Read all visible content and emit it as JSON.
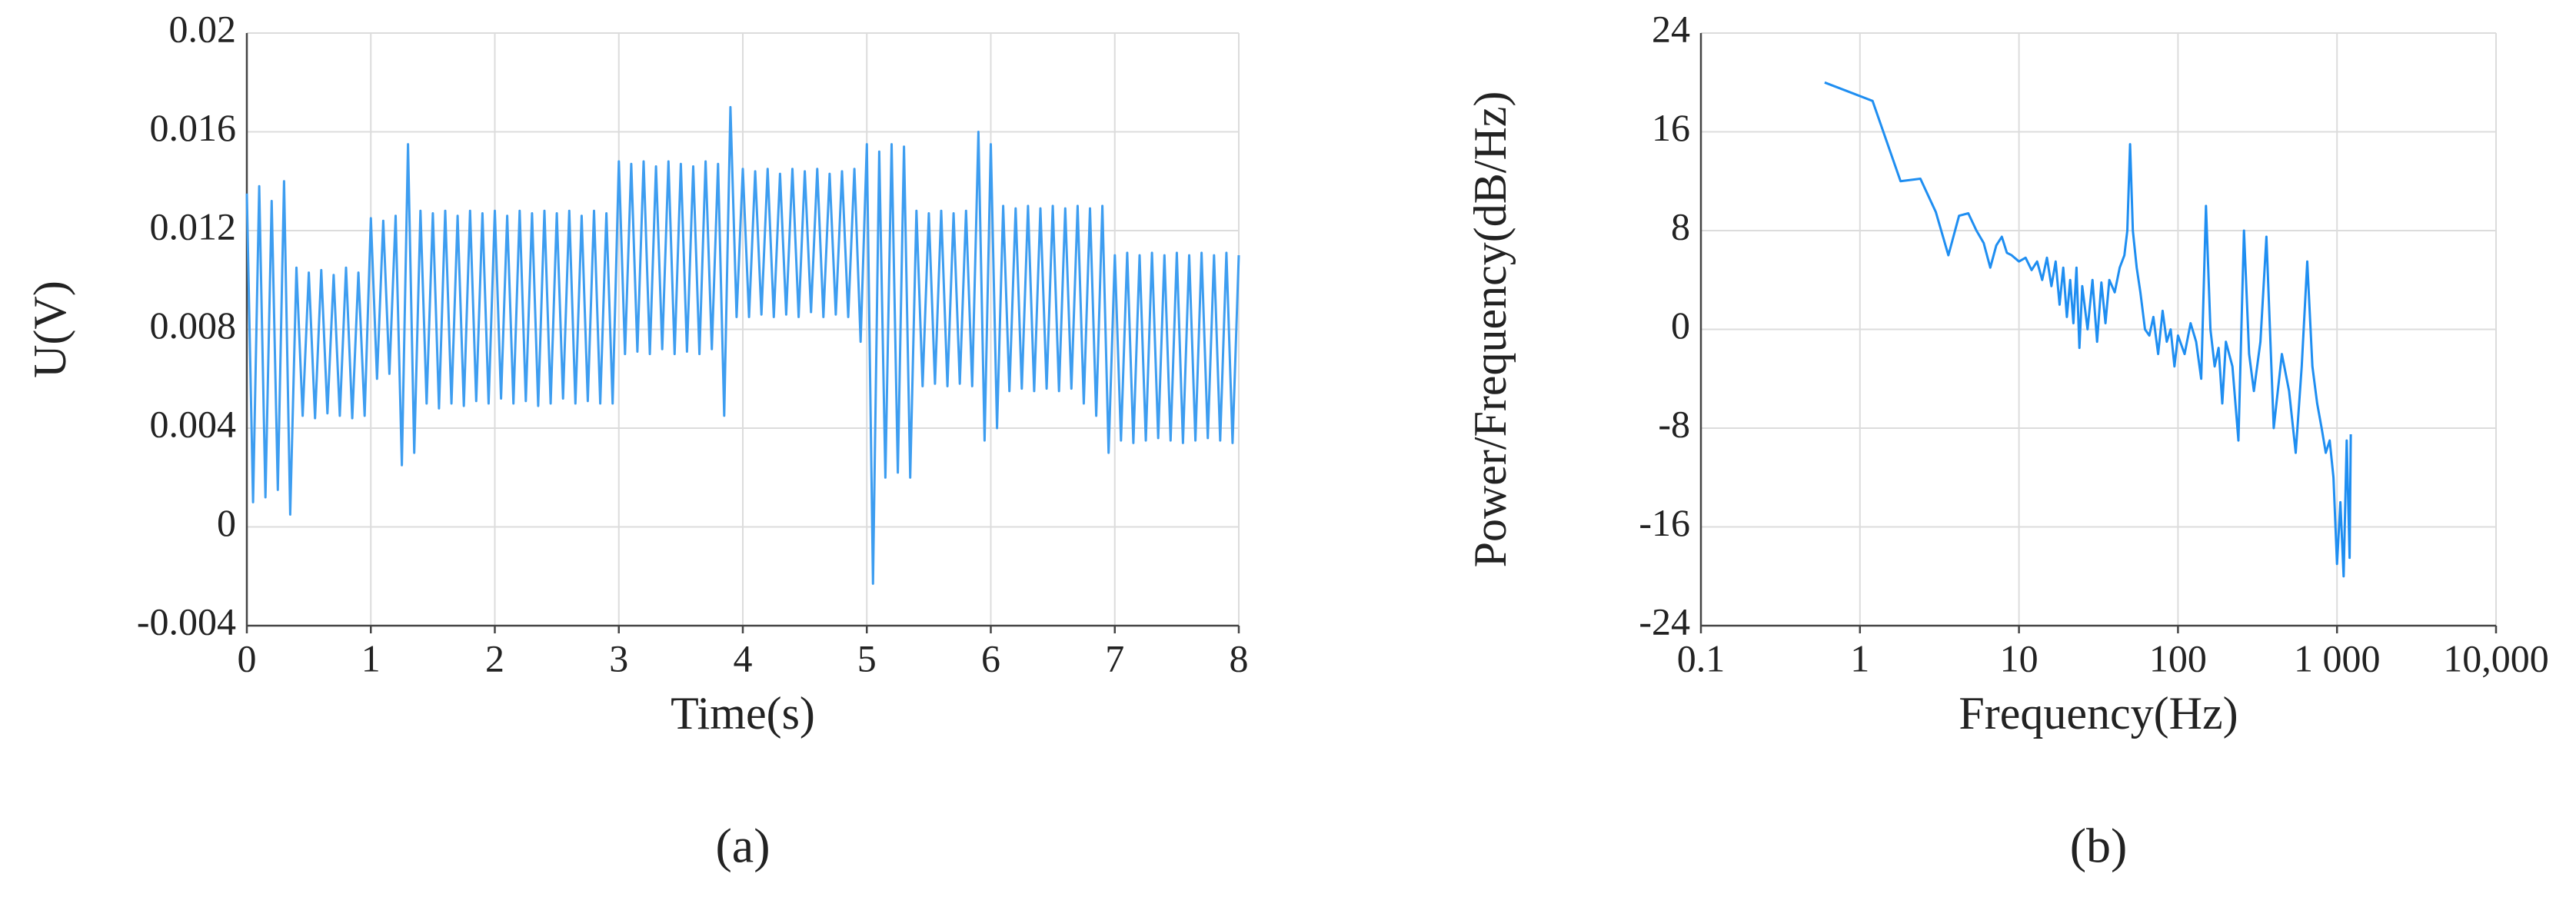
{
  "chart_data": [
    {
      "type": "line",
      "xlabel": "Time(s)",
      "ylabel": "U(V)",
      "caption": "(a)",
      "xlim": [
        0,
        8
      ],
      "xticks": [
        0,
        1,
        2,
        3,
        4,
        5,
        6,
        7,
        8
      ],
      "ylim": [
        -0.004,
        0.02
      ],
      "yticks": [
        -0.004,
        0,
        0.004,
        0.008,
        0.012,
        0.016,
        0.02
      ],
      "grid": true,
      "color": "#3d9df0",
      "x": [
        0,
        0.05,
        0.1,
        0.15,
        0.2,
        0.25,
        0.3,
        0.35,
        0.4,
        0.45,
        0.5,
        0.55,
        0.6,
        0.65,
        0.7,
        0.75,
        0.8,
        0.85,
        0.9,
        0.95,
        1,
        1.05,
        1.1,
        1.15,
        1.2,
        1.25,
        1.3,
        1.35,
        1.4,
        1.45,
        1.5,
        1.55,
        1.6,
        1.65,
        1.7,
        1.75,
        1.8,
        1.85,
        1.9,
        1.95,
        2,
        2.05,
        2.1,
        2.15,
        2.2,
        2.25,
        2.3,
        2.35,
        2.4,
        2.45,
        2.5,
        2.55,
        2.6,
        2.65,
        2.7,
        2.75,
        2.8,
        2.85,
        2.9,
        2.95,
        3,
        3.05,
        3.1,
        3.15,
        3.2,
        3.25,
        3.3,
        3.35,
        3.4,
        3.45,
        3.5,
        3.55,
        3.6,
        3.65,
        3.7,
        3.75,
        3.8,
        3.85,
        3.9,
        3.95,
        4,
        4.05,
        4.1,
        4.15,
        4.2,
        4.25,
        4.3,
        4.35,
        4.4,
        4.45,
        4.5,
        4.55,
        4.6,
        4.65,
        4.7,
        4.75,
        4.8,
        4.85,
        4.9,
        4.95,
        5,
        5.05,
        5.1,
        5.15,
        5.2,
        5.25,
        5.3,
        5.35,
        5.4,
        5.45,
        5.5,
        5.55,
        5.6,
        5.65,
        5.7,
        5.75,
        5.8,
        5.85,
        5.9,
        5.95,
        6,
        6.05,
        6.1,
        6.15,
        6.2,
        6.25,
        6.3,
        6.35,
        6.4,
        6.45,
        6.5,
        6.55,
        6.6,
        6.65,
        6.7,
        6.75,
        6.8,
        6.85,
        6.9,
        6.95,
        7,
        7.05,
        7.1,
        7.15,
        7.2,
        7.25,
        7.3,
        7.35,
        7.4,
        7.45,
        7.5,
        7.55,
        7.6,
        7.65,
        7.7,
        7.75,
        7.8,
        7.85,
        7.9,
        7.95,
        8
      ],
      "values": [
        0.0135,
        0.001,
        0.0138,
        0.0012,
        0.0132,
        0.0015,
        0.014,
        0.0005,
        0.0105,
        0.0045,
        0.0103,
        0.0044,
        0.0104,
        0.0046,
        0.0102,
        0.0045,
        0.0105,
        0.0044,
        0.0103,
        0.0045,
        0.0125,
        0.006,
        0.0124,
        0.0062,
        0.0126,
        0.0025,
        0.0155,
        0.003,
        0.0128,
        0.005,
        0.0127,
        0.0048,
        0.0128,
        0.005,
        0.0126,
        0.0049,
        0.0128,
        0.0051,
        0.0127,
        0.005,
        0.0128,
        0.0052,
        0.0126,
        0.005,
        0.0128,
        0.0051,
        0.0127,
        0.0049,
        0.0128,
        0.005,
        0.0127,
        0.0052,
        0.0128,
        0.005,
        0.0126,
        0.0051,
        0.0128,
        0.005,
        0.0127,
        0.005,
        0.0148,
        0.007,
        0.0147,
        0.0071,
        0.0148,
        0.007,
        0.0146,
        0.0072,
        0.0148,
        0.007,
        0.0147,
        0.0071,
        0.0146,
        0.007,
        0.0148,
        0.0072,
        0.0147,
        0.0045,
        0.017,
        0.0085,
        0.0145,
        0.0085,
        0.0144,
        0.0086,
        0.0145,
        0.0085,
        0.0143,
        0.0086,
        0.0145,
        0.0085,
        0.0144,
        0.0087,
        0.0145,
        0.0085,
        0.0143,
        0.0086,
        0.0144,
        0.0085,
        0.0145,
        0.0075,
        0.0155,
        -0.0023,
        0.0152,
        0.002,
        0.0155,
        0.0022,
        0.0154,
        0.002,
        0.0128,
        0.0057,
        0.0127,
        0.0058,
        0.0128,
        0.0057,
        0.0127,
        0.0058,
        0.0128,
        0.0057,
        0.016,
        0.0035,
        0.0155,
        0.004,
        0.013,
        0.0055,
        0.0129,
        0.0056,
        0.013,
        0.0055,
        0.0129,
        0.0056,
        0.013,
        0.0055,
        0.0129,
        0.0056,
        0.013,
        0.005,
        0.0129,
        0.0045,
        0.013,
        0.003,
        0.011,
        0.0035,
        0.0111,
        0.0034,
        0.011,
        0.0035,
        0.0111,
        0.0036,
        0.011,
        0.0035,
        0.0111,
        0.0034,
        0.011,
        0.0035,
        0.0111,
        0.0036,
        0.011,
        0.0035,
        0.0111,
        0.0034,
        0.011
      ]
    },
    {
      "type": "line",
      "xlabel": "Frequency(Hz)",
      "ylabel": "Power/Frequency(dB/Hz)",
      "caption": "(b)",
      "xscale": "log",
      "xlim": [
        0.1,
        10000
      ],
      "xticks": [
        0.1,
        1,
        10,
        100,
        {
          "value": 1000,
          "label": "1 000"
        },
        {
          "value": 10000,
          "label": "10,000"
        }
      ],
      "ylim": [
        -24,
        24
      ],
      "yticks": [
        -24,
        -16,
        -8,
        0,
        8,
        16,
        24
      ],
      "grid": true,
      "color": "#1f8ef1",
      "x": [
        0.6,
        1.2,
        1.8,
        2.4,
        3,
        3.6,
        4.2,
        4.8,
        5.4,
        6,
        6.6,
        7.2,
        7.8,
        8.4,
        9,
        10,
        11,
        12,
        13,
        14,
        15,
        16,
        17,
        18,
        19,
        20,
        21,
        22,
        23,
        24,
        25,
        27,
        29,
        31,
        33,
        35,
        37,
        40,
        43,
        46,
        48,
        50,
        52,
        55,
        58,
        62,
        66,
        70,
        75,
        80,
        85,
        90,
        95,
        100,
        110,
        120,
        130,
        140,
        150,
        160,
        170,
        180,
        190,
        200,
        220,
        240,
        260,
        280,
        300,
        330,
        360,
        400,
        450,
        500,
        550,
        600,
        650,
        700,
        750,
        800,
        850,
        900,
        950,
        1000,
        1050,
        1100,
        1150,
        1200,
        1220
      ],
      "values": [
        20,
        18.5,
        12,
        12.2,
        9.5,
        6,
        9.2,
        9.4,
        8,
        7,
        5,
        6.8,
        7.5,
        6.2,
        6,
        5.5,
        5.8,
        4.8,
        5.5,
        4,
        5.8,
        3.5,
        5.5,
        2,
        5,
        1,
        4,
        0.5,
        5,
        -1.5,
        3.5,
        0,
        4,
        -1,
        3.8,
        0.5,
        4,
        3,
        5,
        6,
        8,
        15,
        8,
        5,
        3,
        0,
        -0.5,
        1,
        -2,
        1.5,
        -1,
        0,
        -3,
        -0.5,
        -2,
        0.5,
        -1,
        -4,
        10,
        0,
        -3,
        -1.5,
        -6,
        -1,
        -3,
        -9,
        8,
        -2,
        -5,
        -1,
        7.5,
        -8,
        -2,
        -5,
        -10,
        -3,
        5.5,
        -3,
        -6,
        -8,
        -10,
        -9,
        -12,
        -19,
        -14,
        -20,
        -9,
        -18.5,
        -8.5
      ]
    }
  ]
}
